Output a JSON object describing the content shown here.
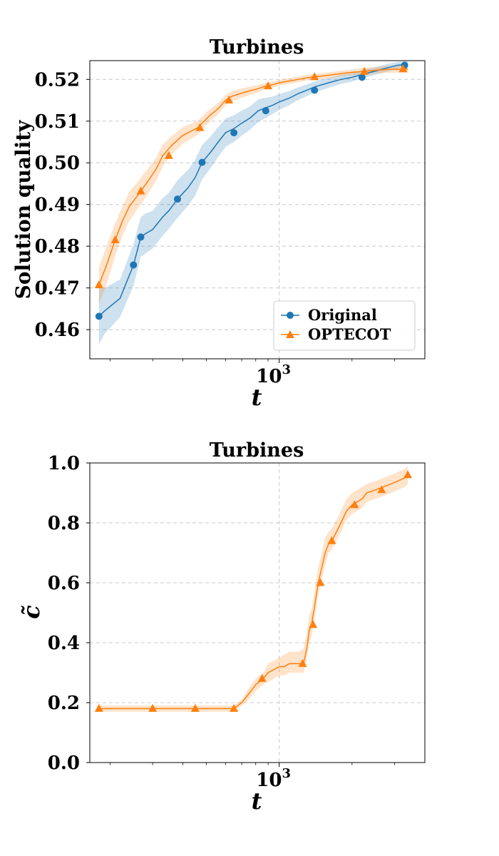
{
  "chart_data": [
    {
      "type": "line",
      "title": "Turbines",
      "xlabel": "t",
      "ylabel": "Solution quality",
      "xscale": "log",
      "xlim": [
        165,
        4000
      ],
      "ylim": [
        0.453,
        0.5245
      ],
      "xticks": [
        {
          "value": 1000,
          "base": "10",
          "exp": "3"
        }
      ],
      "yticks": [
        0.46,
        0.47,
        0.48,
        0.49,
        0.5,
        0.51,
        0.52
      ],
      "ytick_labels": [
        "0.46",
        "0.47",
        "0.48",
        "0.49",
        "0.50",
        "0.51",
        "0.52"
      ],
      "grid": true,
      "legend_position": "lower-right",
      "series": [
        {
          "name": "Original",
          "color": "#1f77b4",
          "marker": "circle",
          "x": [
            180,
            190,
            220,
            250,
            268,
            280,
            300,
            330,
            350,
            380,
            420,
            450,
            480,
            520,
            560,
            600,
            650,
            700,
            760,
            820,
            880,
            940,
            1000,
            1100,
            1200,
            1300,
            1400,
            1600,
            1800,
            2000,
            2200,
            2500,
            2800,
            3100,
            3400
          ],
          "y": [
            0.4632,
            0.4645,
            0.4675,
            0.4755,
            0.4822,
            0.483,
            0.484,
            0.487,
            0.4885,
            0.4913,
            0.494,
            0.4965,
            0.5001,
            0.5025,
            0.505,
            0.5072,
            0.5082,
            0.5095,
            0.5108,
            0.5125,
            0.5132,
            0.5138,
            0.5146,
            0.5155,
            0.5166,
            0.5174,
            0.5182,
            0.5192,
            0.52,
            0.5205,
            0.5212,
            0.522,
            0.5228,
            0.5234,
            0.5236
          ],
          "lower": [
            0.4565,
            0.459,
            0.463,
            0.4705,
            0.4775,
            0.4782,
            0.4795,
            0.4825,
            0.4842,
            0.4868,
            0.4897,
            0.4922,
            0.496,
            0.4987,
            0.5014,
            0.5038,
            0.505,
            0.5065,
            0.508,
            0.5098,
            0.5108,
            0.5117,
            0.5127,
            0.5138,
            0.5151,
            0.516,
            0.5169,
            0.518,
            0.5189,
            0.5195,
            0.5202,
            0.5211,
            0.5219,
            0.5226,
            0.5229
          ],
          "upper": [
            0.47,
            0.47,
            0.472,
            0.4805,
            0.487,
            0.4878,
            0.4885,
            0.4915,
            0.4928,
            0.4958,
            0.4983,
            0.5008,
            0.5042,
            0.5063,
            0.5086,
            0.5106,
            0.5114,
            0.5125,
            0.5136,
            0.5152,
            0.5156,
            0.5159,
            0.5165,
            0.5172,
            0.5181,
            0.5188,
            0.5195,
            0.5204,
            0.5211,
            0.5215,
            0.5222,
            0.5229,
            0.5237,
            0.5242,
            0.5243
          ],
          "markers_x": [
            180,
            250,
            268,
            380,
            480,
            650,
            880,
            1400,
            2200,
            3300
          ],
          "markers_y": [
            0.4632,
            0.4755,
            0.4822,
            0.4913,
            0.5001,
            0.5072,
            0.5125,
            0.5174,
            0.5205,
            0.5234
          ]
        },
        {
          "name": "OPTECOT",
          "color": "#ff7f0e",
          "marker": "triangle",
          "x": [
            180,
            195,
            210,
            225,
            240,
            255,
            268,
            290,
            310,
            330,
            360,
            400,
            430,
            460,
            490,
            520,
            560,
            600,
            640,
            700,
            760,
            820,
            880,
            950,
            1000,
            1100,
            1200,
            1300,
            1400,
            1600,
            1800,
            2000,
            2200,
            2500,
            2800,
            3100,
            3400
          ],
          "y": [
            0.4707,
            0.476,
            0.4815,
            0.486,
            0.4895,
            0.4915,
            0.4932,
            0.496,
            0.4985,
            0.5017,
            0.5042,
            0.5066,
            0.5075,
            0.5084,
            0.51,
            0.5115,
            0.513,
            0.515,
            0.516,
            0.5167,
            0.5173,
            0.5178,
            0.5184,
            0.5188,
            0.5192,
            0.5196,
            0.52,
            0.5204,
            0.5206,
            0.521,
            0.5214,
            0.5217,
            0.5219,
            0.5222,
            0.5224,
            0.5224,
            0.5225
          ],
          "lower": [
            0.466,
            0.4715,
            0.4775,
            0.4825,
            0.486,
            0.4882,
            0.49,
            0.493,
            0.4957,
            0.499,
            0.502,
            0.5046,
            0.5057,
            0.5067,
            0.5084,
            0.51,
            0.5116,
            0.5138,
            0.5148,
            0.5156,
            0.5163,
            0.5169,
            0.5176,
            0.5181,
            0.5185,
            0.5189,
            0.5193,
            0.5197,
            0.5199,
            0.5203,
            0.5207,
            0.521,
            0.5211,
            0.5214,
            0.5216,
            0.5216,
            0.5216
          ],
          "upper": [
            0.475,
            0.4805,
            0.4855,
            0.4895,
            0.493,
            0.4948,
            0.4964,
            0.499,
            0.5013,
            0.5044,
            0.5064,
            0.5086,
            0.5093,
            0.5101,
            0.5116,
            0.513,
            0.5144,
            0.5162,
            0.5172,
            0.5178,
            0.5183,
            0.5187,
            0.5192,
            0.5195,
            0.5199,
            0.5203,
            0.5207,
            0.5211,
            0.5213,
            0.5217,
            0.5221,
            0.5224,
            0.5227,
            0.523,
            0.5232,
            0.5232,
            0.5234
          ],
          "markers_x": [
            180,
            210,
            268,
            350,
            470,
            620,
            900,
            1400,
            2250,
            3250
          ],
          "markers_y": [
            0.4707,
            0.4815,
            0.4932,
            0.5017,
            0.5084,
            0.515,
            0.5184,
            0.5206,
            0.5219,
            0.5225
          ]
        }
      ]
    },
    {
      "type": "line",
      "title": "Turbines",
      "xlabel": "t",
      "ylabel": "c̃",
      "xscale": "log",
      "xlim": [
        165,
        4000
      ],
      "ylim": [
        0.0,
        1.0
      ],
      "xticks": [
        {
          "value": 1000,
          "base": "10",
          "exp": "3"
        }
      ],
      "yticks": [
        0.0,
        0.2,
        0.4,
        0.6,
        0.8,
        1.0
      ],
      "ytick_labels": [
        "0.0",
        "0.2",
        "0.4",
        "0.6",
        "0.8",
        "1.0"
      ],
      "grid": true,
      "series": [
        {
          "name": "OPTECOT",
          "color": "#ff7f0e",
          "marker": "triangle",
          "x": [
            180,
            300,
            450,
            620,
            650,
            700,
            750,
            800,
            860,
            900,
            950,
            1000,
            1050,
            1100,
            1200,
            1260,
            1300,
            1330,
            1360,
            1400,
            1450,
            1500,
            1550,
            1600,
            1650,
            1700,
            1750,
            1800,
            1900,
            2000,
            2100,
            2200,
            2300,
            2500,
            2700,
            2900,
            3100,
            3300,
            3400
          ],
          "y": [
            0.18,
            0.18,
            0.18,
            0.18,
            0.18,
            0.2,
            0.23,
            0.26,
            0.28,
            0.3,
            0.31,
            0.32,
            0.32,
            0.33,
            0.33,
            0.33,
            0.38,
            0.44,
            0.46,
            0.52,
            0.6,
            0.65,
            0.7,
            0.73,
            0.74,
            0.76,
            0.78,
            0.8,
            0.84,
            0.86,
            0.87,
            0.88,
            0.9,
            0.91,
            0.92,
            0.93,
            0.94,
            0.95,
            0.96
          ],
          "lower": [
            0.17,
            0.17,
            0.17,
            0.17,
            0.17,
            0.19,
            0.21,
            0.24,
            0.26,
            0.27,
            0.28,
            0.29,
            0.29,
            0.3,
            0.3,
            0.3,
            0.34,
            0.4,
            0.42,
            0.48,
            0.56,
            0.61,
            0.66,
            0.7,
            0.71,
            0.73,
            0.75,
            0.77,
            0.81,
            0.83,
            0.84,
            0.85,
            0.87,
            0.88,
            0.89,
            0.9,
            0.91,
            0.92,
            0.93
          ],
          "upper": [
            0.19,
            0.19,
            0.19,
            0.19,
            0.19,
            0.21,
            0.25,
            0.28,
            0.3,
            0.33,
            0.34,
            0.35,
            0.36,
            0.37,
            0.37,
            0.38,
            0.43,
            0.49,
            0.51,
            0.57,
            0.65,
            0.7,
            0.75,
            0.77,
            0.78,
            0.8,
            0.82,
            0.84,
            0.88,
            0.9,
            0.91,
            0.92,
            0.93,
            0.94,
            0.95,
            0.96,
            0.97,
            0.98,
            0.99
          ],
          "markers_x": [
            180,
            300,
            450,
            650,
            850,
            1250,
            1380,
            1480,
            1650,
            2050,
            2650,
            3400
          ],
          "markers_y": [
            0.18,
            0.18,
            0.18,
            0.18,
            0.28,
            0.33,
            0.46,
            0.6,
            0.74,
            0.86,
            0.91,
            0.96
          ]
        }
      ]
    }
  ]
}
